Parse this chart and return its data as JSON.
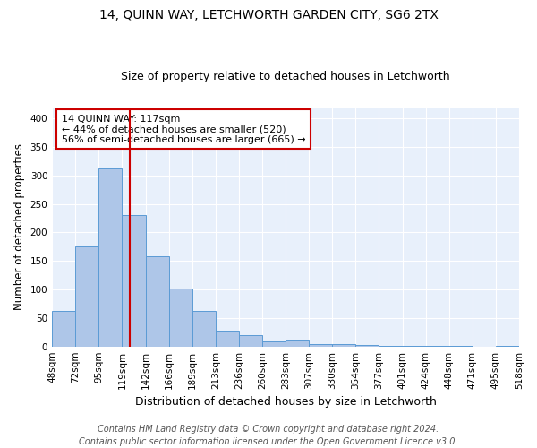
{
  "title1": "14, QUINN WAY, LETCHWORTH GARDEN CITY, SG6 2TX",
  "title2": "Size of property relative to detached houses in Letchworth",
  "xlabel": "Distribution of detached houses by size in Letchworth",
  "ylabel": "Number of detached properties",
  "bar_values": [
    62,
    175,
    313,
    230,
    158,
    102,
    62,
    28,
    20,
    9,
    10,
    5,
    4,
    2,
    1,
    1,
    1,
    1,
    0,
    1
  ],
  "bar_labels": [
    "48sqm",
    "72sqm",
    "95sqm",
    "119sqm",
    "142sqm",
    "166sqm",
    "189sqm",
    "213sqm",
    "236sqm",
    "260sqm",
    "283sqm",
    "307sqm",
    "330sqm",
    "354sqm",
    "377sqm",
    "401sqm",
    "424sqm",
    "448sqm",
    "471sqm",
    "495sqm",
    "518sqm"
  ],
  "bar_color": "#aec6e8",
  "bar_edgecolor": "#5b9bd5",
  "vline_color": "#cc0000",
  "annotation_text": "14 QUINN WAY: 117sqm\n← 44% of detached houses are smaller (520)\n56% of semi-detached houses are larger (665) →",
  "annotation_box_edgecolor": "#cc0000",
  "annotation_box_facecolor": "#ffffff",
  "ylim": [
    0,
    420
  ],
  "yticks": [
    0,
    50,
    100,
    150,
    200,
    250,
    300,
    350,
    400
  ],
  "footer1": "Contains HM Land Registry data © Crown copyright and database right 2024.",
  "footer2": "Contains public sector information licensed under the Open Government Licence v3.0.",
  "background_color": "#e8f0fb",
  "title1_fontsize": 10,
  "title2_fontsize": 9,
  "xlabel_fontsize": 9,
  "ylabel_fontsize": 8.5,
  "footer_fontsize": 7,
  "tick_fontsize": 7.5
}
